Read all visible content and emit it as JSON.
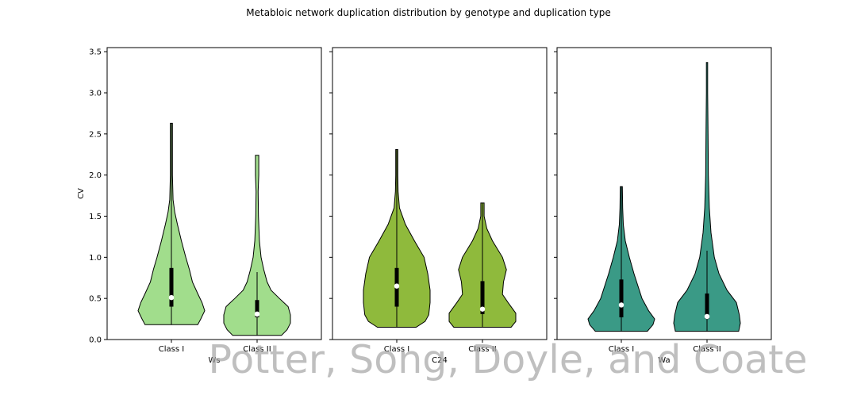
{
  "title": "Metabloic network duplication distribution by genotype and duplication type",
  "ylabel": "CV",
  "watermark": "Potter, Song, Doyle, and Coate",
  "chart_data": {
    "type": "violin",
    "title": "Metabloic network duplication distribution by genotype and duplication type",
    "ylabel": "CV",
    "ylim": [
      0,
      3.55
    ],
    "yticks": [
      0.0,
      0.5,
      1.0,
      1.5,
      2.0,
      2.5,
      3.0,
      3.5
    ],
    "shared_y": true,
    "grid": false,
    "categories": [
      "Class I",
      "Class II"
    ],
    "panels": [
      {
        "xlabel": "Ws",
        "color": "#a1dd8c",
        "violins": [
          {
            "category": "Class I",
            "min": 0.18,
            "max": 2.63,
            "q1": 0.4,
            "median": 0.51,
            "q3": 0.87,
            "whisker_low": 0.18,
            "whisker_high": 2.63,
            "profile": [
              [
                0.18,
                0.79
              ],
              [
                0.25,
                0.88
              ],
              [
                0.35,
                1.0
              ],
              [
                0.45,
                0.92
              ],
              [
                0.55,
                0.8
              ],
              [
                0.7,
                0.63
              ],
              [
                0.85,
                0.54
              ],
              [
                1.0,
                0.43
              ],
              [
                1.2,
                0.3
              ],
              [
                1.4,
                0.18
              ],
              [
                1.55,
                0.1
              ],
              [
                1.7,
                0.05
              ],
              [
                2.0,
                0.03
              ],
              [
                2.3,
                0.03
              ],
              [
                2.63,
                0.03
              ]
            ]
          },
          {
            "category": "Class II",
            "min": 0.05,
            "max": 2.24,
            "q1": 0.27,
            "median": 0.31,
            "q3": 0.48,
            "whisker_low": 0.05,
            "whisker_high": 0.82,
            "profile": [
              [
                0.05,
                0.73
              ],
              [
                0.12,
                0.9
              ],
              [
                0.2,
                1.0
              ],
              [
                0.3,
                1.0
              ],
              [
                0.4,
                0.93
              ],
              [
                0.5,
                0.67
              ],
              [
                0.6,
                0.42
              ],
              [
                0.7,
                0.3
              ],
              [
                0.85,
                0.2
              ],
              [
                1.0,
                0.12
              ],
              [
                1.2,
                0.07
              ],
              [
                1.5,
                0.04
              ],
              [
                1.8,
                0.03
              ],
              [
                2.0,
                0.05
              ],
              [
                2.24,
                0.05
              ]
            ]
          }
        ]
      },
      {
        "xlabel": "C24",
        "color": "#8fba3c",
        "violins": [
          {
            "category": "Class I",
            "min": 0.15,
            "max": 2.31,
            "q1": 0.4,
            "median": 0.65,
            "q3": 0.87,
            "whisker_low": 0.15,
            "whisker_high": 2.31,
            "profile": [
              [
                0.15,
                0.58
              ],
              [
                0.22,
                0.85
              ],
              [
                0.3,
                0.96
              ],
              [
                0.45,
                1.0
              ],
              [
                0.6,
                1.0
              ],
              [
                0.8,
                0.93
              ],
              [
                1.0,
                0.82
              ],
              [
                1.2,
                0.53
              ],
              [
                1.4,
                0.26
              ],
              [
                1.6,
                0.08
              ],
              [
                1.8,
                0.04
              ],
              [
                2.0,
                0.03
              ],
              [
                2.31,
                0.03
              ]
            ]
          },
          {
            "category": "Class II",
            "min": 0.15,
            "max": 1.66,
            "q1": 0.31,
            "median": 0.37,
            "q3": 0.71,
            "whisker_low": 0.15,
            "whisker_high": 1.66,
            "profile": [
              [
                0.15,
                0.86
              ],
              [
                0.22,
                1.0
              ],
              [
                0.32,
                1.0
              ],
              [
                0.45,
                0.77
              ],
              [
                0.55,
                0.6
              ],
              [
                0.7,
                0.63
              ],
              [
                0.85,
                0.72
              ],
              [
                1.0,
                0.6
              ],
              [
                1.2,
                0.3
              ],
              [
                1.35,
                0.13
              ],
              [
                1.5,
                0.05
              ],
              [
                1.66,
                0.05
              ]
            ]
          }
        ]
      },
      {
        "xlabel": "Wa",
        "color": "#3a9a86",
        "violins": [
          {
            "category": "Class I",
            "min": 0.1,
            "max": 1.86,
            "q1": 0.27,
            "median": 0.42,
            "q3": 0.73,
            "whisker_low": 0.1,
            "whisker_high": 1.86,
            "profile": [
              [
                0.1,
                0.78
              ],
              [
                0.18,
                0.95
              ],
              [
                0.25,
                1.0
              ],
              [
                0.35,
                0.82
              ],
              [
                0.5,
                0.62
              ],
              [
                0.65,
                0.5
              ],
              [
                0.8,
                0.38
              ],
              [
                1.0,
                0.24
              ],
              [
                1.2,
                0.12
              ],
              [
                1.4,
                0.06
              ],
              [
                1.6,
                0.04
              ],
              [
                1.86,
                0.03
              ]
            ]
          },
          {
            "category": "Class II",
            "min": 0.1,
            "max": 3.37,
            "q1": 0.25,
            "median": 0.28,
            "q3": 0.56,
            "whisker_low": 0.1,
            "whisker_high": 1.08,
            "profile": [
              [
                0.1,
                0.95
              ],
              [
                0.2,
                1.0
              ],
              [
                0.3,
                0.97
              ],
              [
                0.45,
                0.88
              ],
              [
                0.6,
                0.6
              ],
              [
                0.8,
                0.36
              ],
              [
                1.0,
                0.22
              ],
              [
                1.3,
                0.12
              ],
              [
                1.6,
                0.07
              ],
              [
                2.0,
                0.04
              ],
              [
                2.5,
                0.03
              ],
              [
                3.0,
                0.02
              ],
              [
                3.37,
                0.02
              ]
            ]
          }
        ]
      }
    ]
  }
}
